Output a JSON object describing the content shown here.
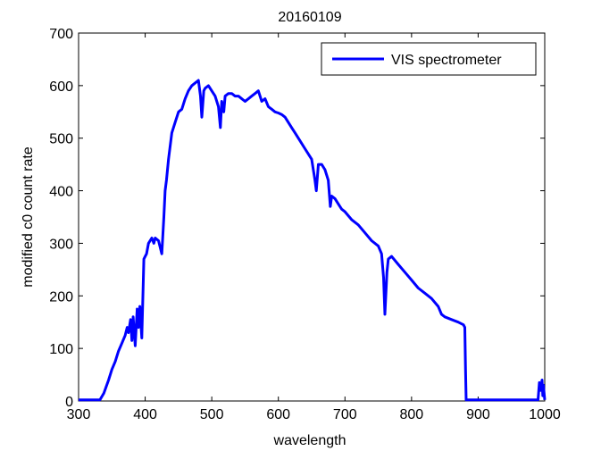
{
  "chart_data": {
    "type": "line",
    "title": "20160109",
    "xlabel": "wavelength",
    "ylabel": "modified c0 count rate",
    "xlim": [
      300,
      1000
    ],
    "ylim": [
      0,
      700
    ],
    "xticks": [
      300,
      400,
      500,
      600,
      700,
      800,
      900,
      1000
    ],
    "yticks": [
      0,
      100,
      200,
      300,
      400,
      500,
      600,
      700
    ],
    "grid": false,
    "legend_position": "top-right",
    "series": [
      {
        "name": "VIS spectrometer",
        "color": "#0000ff",
        "x": [
          300,
          332,
          338,
          345,
          350,
          355,
          360,
          365,
          370,
          373,
          375,
          378,
          380,
          382,
          385,
          388,
          390,
          392,
          395,
          398,
          400,
          402,
          405,
          410,
          413,
          415,
          420,
          425,
          428,
          430,
          432,
          435,
          440,
          445,
          450,
          455,
          460,
          465,
          470,
          475,
          480,
          483,
          485,
          488,
          490,
          495,
          500,
          505,
          510,
          513,
          515,
          518,
          520,
          525,
          530,
          535,
          540,
          545,
          550,
          555,
          560,
          565,
          570,
          575,
          580,
          585,
          590,
          595,
          600,
          605,
          610,
          615,
          620,
          625,
          630,
          640,
          650,
          655,
          657,
          660,
          665,
          670,
          675,
          678,
          680,
          685,
          690,
          695,
          700,
          710,
          720,
          730,
          740,
          750,
          755,
          758,
          760,
          763,
          765,
          770,
          780,
          790,
          800,
          810,
          820,
          830,
          840,
          845,
          850,
          860,
          870,
          878,
          880,
          881,
          882,
          900,
          950,
          990,
          992,
          994,
          996,
          997,
          998,
          999,
          1000
        ],
        "y": [
          2,
          2,
          15,
          40,
          60,
          75,
          95,
          110,
          125,
          140,
          130,
          155,
          115,
          160,
          105,
          175,
          140,
          180,
          120,
          270,
          275,
          280,
          300,
          310,
          300,
          310,
          305,
          280,
          350,
          400,
          420,
          460,
          510,
          530,
          550,
          555,
          575,
          590,
          600,
          605,
          610,
          580,
          540,
          590,
          595,
          600,
          590,
          580,
          560,
          520,
          570,
          550,
          580,
          585,
          585,
          580,
          580,
          575,
          570,
          575,
          580,
          585,
          590,
          570,
          575,
          560,
          555,
          550,
          548,
          545,
          540,
          530,
          520,
          510,
          500,
          480,
          460,
          420,
          400,
          450,
          450,
          440,
          420,
          370,
          390,
          385,
          375,
          365,
          360,
          345,
          335,
          320,
          305,
          295,
          280,
          235,
          165,
          245,
          270,
          275,
          260,
          245,
          230,
          215,
          205,
          195,
          180,
          165,
          160,
          155,
          150,
          145,
          140,
          60,
          2,
          2,
          2,
          2,
          35,
          20,
          40,
          10,
          30,
          15,
          2
        ]
      }
    ]
  }
}
